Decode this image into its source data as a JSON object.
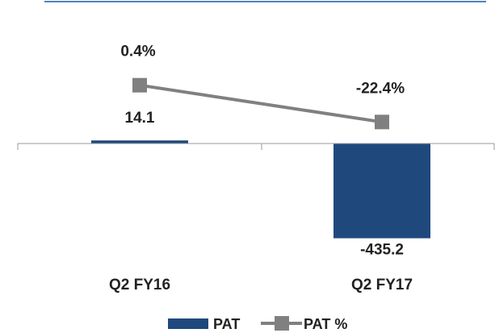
{
  "chart_data": {
    "type": "bar+line",
    "categories": [
      "Q2 FY16",
      "Q2 FY17"
    ],
    "series": [
      {
        "name": "PAT",
        "kind": "bar",
        "axis": "left",
        "values": [
          14.1,
          -435.2
        ],
        "labels": [
          "14.1",
          "-435.2"
        ],
        "color": "#1f497d"
      },
      {
        "name": "PAT %",
        "kind": "line",
        "axis": "right",
        "values": [
          0.4,
          -22.4
        ],
        "labels": [
          "0.4%",
          "-22.4%"
        ],
        "color": "#808080"
      }
    ],
    "legend_position": "bottom",
    "grid": false
  }
}
